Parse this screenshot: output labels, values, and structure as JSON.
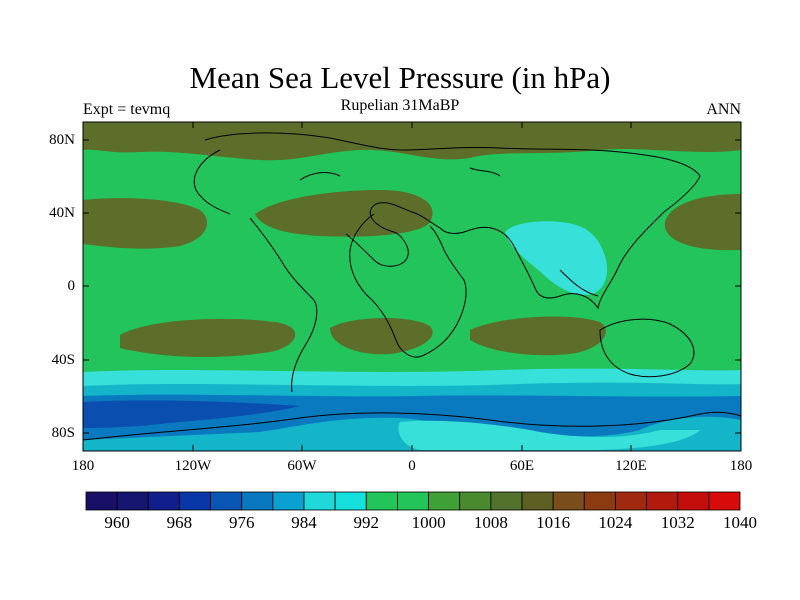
{
  "title": "Mean Sea Level Pressure (in hPa)",
  "subtitle": "Rupelian  31MaBP",
  "left_label": "Expt = tevmq",
  "right_label": "ANN",
  "lat_ticks": [
    "80N",
    "40N",
    "0",
    "40S",
    "80S"
  ],
  "lon_ticks": [
    "180",
    "120W",
    "60W",
    "0",
    "60E",
    "120E",
    "180"
  ],
  "colorbar": {
    "labels": [
      "960",
      "968",
      "976",
      "984",
      "992",
      "1000",
      "1008",
      "1016",
      "1024",
      "1032",
      "1040"
    ],
    "colors": [
      "#1a0f66",
      "#16156f",
      "#101f8c",
      "#0a37a8",
      "#0a56b4",
      "#0a78c0",
      "#0aa0cf",
      "#20d8da",
      "#15e0dd",
      "#22c55a",
      "#22c55a",
      "#3fa035",
      "#4a8a2e",
      "#52712a",
      "#5e5f22",
      "#7a4e1a",
      "#8c3a10",
      "#a02a10",
      "#b21a0e",
      "#c40e0c",
      "#d80a0a"
    ]
  },
  "field_colors": {
    "high": "#5c6e2a",
    "mid": "#4b9632",
    "normal": "#23c45b",
    "low_cyan": "#37e0d8",
    "low_teal": "#14b5c8",
    "low_blue": "#0a7ac0",
    "low_deep": "#0a4fb0",
    "coast": "#000000"
  }
}
